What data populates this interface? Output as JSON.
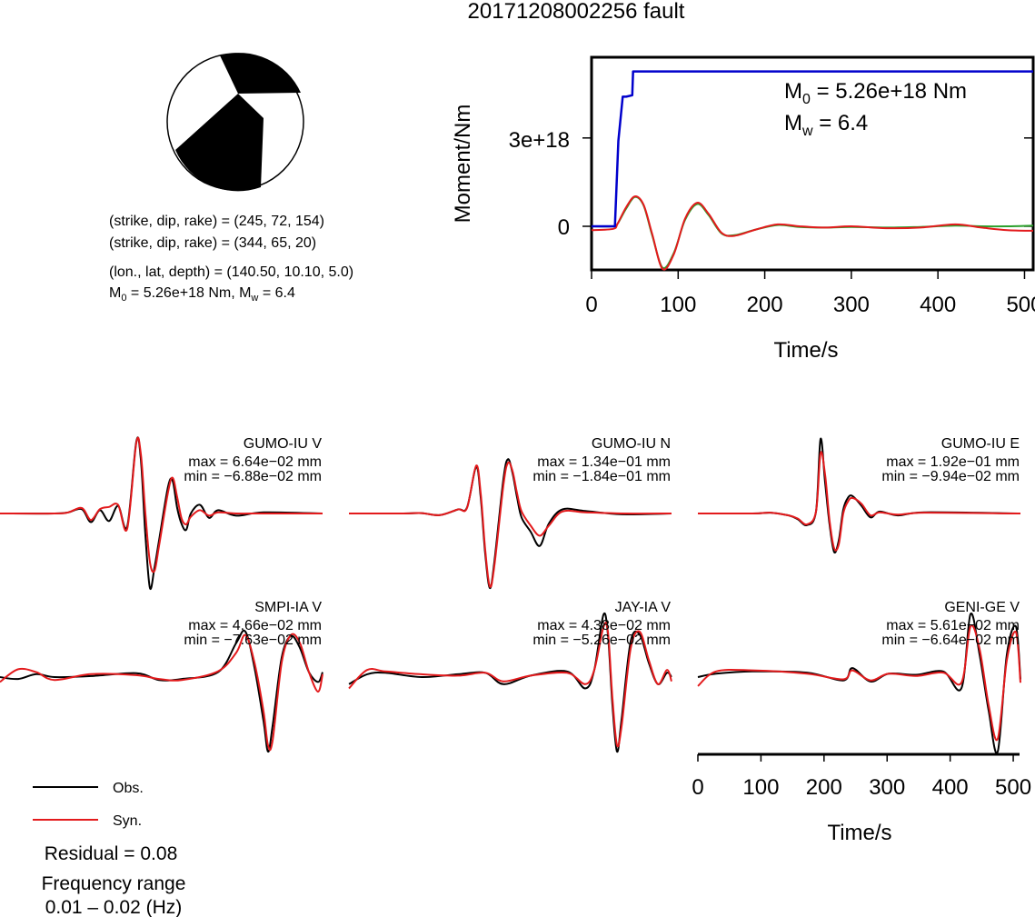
{
  "title": "20171208002256 fault",
  "mechanism": {
    "plane1": "(strike, dip, rake) = (245, 72, 154)",
    "plane2": "(strike, dip, rake) = (344, 65, 20)",
    "location": "(lon., lat, depth) = (140.50, 10.10, 5.0)",
    "moment_label": "M",
    "moment_sub": "0",
    "moment_rest": " = 5.26e+18 Nm, M",
    "mw_sub": "w",
    "mw_rest": " = 6.4"
  },
  "legend": {
    "obs": "Obs.",
    "syn": "Syn.",
    "obs_color": "#000000",
    "syn_color": "#e31a1c"
  },
  "residual": "Residual = 0.08",
  "freq_title": "Frequency range",
  "freq_range": "0.01 – 0.02 (Hz)",
  "chart_data": [
    {
      "type": "line",
      "name": "moment-rate",
      "xlabel": "Time/s",
      "ylabel": "Moment/Nm",
      "xlim": [
        0,
        510
      ],
      "xticks": [
        "0",
        "100",
        "200",
        "300",
        "400",
        "500"
      ],
      "yticks": [
        "0",
        "3e+18"
      ],
      "annotation": {
        "m0_main": "M",
        "m0_sub": "0",
        "m0_rest": " = 5.26e+18 Nm",
        "mw_main": "M",
        "mw_sub": "w",
        "mw_rest": " = 6.4"
      },
      "cumulative": {
        "color": "#0000cc",
        "x": [
          0,
          27,
          31,
          36,
          40,
          47,
          48,
          510
        ],
        "y": [
          0,
          0,
          2.9e+18,
          4.4e+18,
          4.4e+18,
          4.45e+18,
          5.26e+18,
          5.26e+18
        ]
      },
      "series_colors": [
        "#e31a1c",
        "#2ca02c"
      ],
      "wave_x": [
        0,
        25,
        30,
        40,
        50,
        60,
        70,
        82,
        95,
        108,
        122,
        135,
        150,
        165,
        190,
        215,
        240,
        270,
        300,
        340,
        380,
        420,
        450,
        480,
        510
      ],
      "wave_y_red": [
        -0.3,
        -0.2,
        0.2,
        1.5,
        2.35,
        1.7,
        -0.6,
        -3.35,
        -2.2,
        0.6,
        1.85,
        1.0,
        -0.5,
        -0.75,
        -0.25,
        0.15,
        0.0,
        -0.1,
        0.0,
        -0.15,
        -0.1,
        0.15,
        -0.1,
        -0.3,
        -0.35
      ],
      "wave_y_green": [
        0.0,
        0.0,
        0.2,
        1.4,
        2.3,
        1.65,
        -0.7,
        -3.25,
        -2.1,
        0.5,
        1.75,
        0.9,
        -0.55,
        -0.7,
        -0.25,
        0.1,
        -0.05,
        -0.1,
        -0.05,
        -0.1,
        -0.05,
        0.05,
        0.0,
        0.0,
        0.05
      ]
    },
    {
      "type": "line",
      "name": "waveforms",
      "xlabel": "Time/s",
      "xlim": [
        0,
        510
      ],
      "xticks": [
        "0",
        "100",
        "200",
        "300",
        "400",
        "500"
      ],
      "panels": [
        {
          "station": "GUMO-IU V",
          "max": "max = 6.64e−02 mm",
          "min": "min = −6.88e−02 mm",
          "obs_peak": 6.64,
          "obs_trough": -6.88,
          "x": [
            0,
            60,
            75,
            90,
            100,
            110,
            120,
            130,
            140,
            150,
            155,
            160,
            165,
            170,
            175,
            185,
            190,
            195,
            200,
            205,
            210,
            220,
            230,
            240,
            260,
            290,
            355
          ],
          "obs": [
            0,
            0,
            0.1,
            0.4,
            -0.8,
            0.3,
            -0.7,
            0.7,
            -1.2,
            6.64,
            5.0,
            -2.0,
            -6.88,
            -5.0,
            -2.5,
            2.5,
            3.0,
            0.5,
            -1.0,
            -1.5,
            0.0,
            0.8,
            -0.4,
            0.3,
            -0.2,
            0.1,
            0
          ],
          "syn": [
            0,
            0,
            0.1,
            0.5,
            -0.6,
            0.4,
            0.6,
            0.8,
            -1.4,
            6.5,
            5.5,
            0.0,
            -4.5,
            -5.3,
            -3.0,
            2.0,
            3.3,
            1.5,
            -0.5,
            -1.0,
            -0.3,
            0.3,
            -0.2,
            0.1,
            0,
            0,
            0
          ]
        },
        {
          "station": "GUMO-IU N",
          "max": "max = 1.34e−01 mm",
          "min": "min = −1.84e−01 mm",
          "obs_peak": 13.4,
          "obs_trough": -18.4,
          "x": [
            0,
            60,
            80,
            100,
            120,
            130,
            140,
            145,
            150,
            155,
            160,
            170,
            175,
            180,
            185,
            190,
            200,
            210,
            220,
            235,
            260,
            300,
            355
          ],
          "obs": [
            0,
            0,
            0.1,
            -0.4,
            1.0,
            1.5,
            11.5,
            4.0,
            -10.0,
            -18.4,
            -12.0,
            8.5,
            13.4,
            10.0,
            4.0,
            -1.0,
            -4.5,
            -8.0,
            -2.5,
            1.0,
            0.6,
            -0.2,
            0
          ],
          "syn": [
            0,
            0,
            0.1,
            -0.4,
            1.0,
            1.4,
            11.8,
            5.0,
            -9.0,
            -18.0,
            -13.0,
            7.0,
            12.5,
            10.5,
            5.0,
            0.5,
            -3.0,
            -5.5,
            -3.0,
            0.5,
            0.3,
            0,
            0
          ]
        },
        {
          "station": "GUMO-IU E",
          "max": "max = 1.92e−01 mm",
          "min": "min = −9.94e−02 mm",
          "obs_peak": 19.2,
          "obs_trough": -9.94,
          "x": [
            0,
            60,
            80,
            100,
            110,
            120,
            130,
            135,
            140,
            145,
            150,
            155,
            160,
            165,
            170,
            180,
            190,
            200,
            220,
            250,
            355
          ],
          "obs": [
            0,
            0,
            0.2,
            -0.5,
            -1.5,
            -3.0,
            0.5,
            19.2,
            8.0,
            -3.0,
            -9.94,
            -7.0,
            1.0,
            4.0,
            4.5,
            2.0,
            -1.0,
            0.5,
            -0.5,
            0.3,
            0
          ],
          "syn": [
            0,
            0,
            0.2,
            -0.5,
            -1.3,
            -2.8,
            0.5,
            15.5,
            10.0,
            -2.0,
            -9.0,
            -8.0,
            0.0,
            3.0,
            4.0,
            2.5,
            -0.5,
            0.3,
            -0.3,
            0.2,
            0
          ]
        },
        {
          "station": "SMPI-IA V",
          "max": "max = 4.66e−02 mm",
          "min": "min = −7.63e−02 mm",
          "obs_peak": 4.66,
          "obs_trough": -7.63,
          "x": [
            0,
            20,
            40,
            60,
            100,
            150,
            175,
            200,
            240,
            260,
            270,
            280,
            290,
            295,
            300,
            310,
            320,
            330,
            340,
            350,
            355
          ],
          "obs": [
            0,
            -0.2,
            0.3,
            0,
            0.1,
            0.4,
            -0.3,
            -0.2,
            0.5,
            3.5,
            4.66,
            1.0,
            -4.5,
            -7.63,
            -5.0,
            2.0,
            4.2,
            3.0,
            0.5,
            -0.5,
            0.5
          ],
          "syn": [
            -0.5,
            0.8,
            0.5,
            -0.3,
            0.3,
            0.2,
            -0.2,
            -0.3,
            0.6,
            2.5,
            4.3,
            1.5,
            -3.5,
            -7.0,
            -6.5,
            1.5,
            4.3,
            3.5,
            0.5,
            -1.5,
            0.3
          ]
        },
        {
          "station": "JAY-IA V",
          "max": "max = 4.38e−02 mm",
          "min": "min = −5.26e−02 mm",
          "obs_peak": 4.38,
          "obs_trough": -5.26,
          "x": [
            0,
            20,
            40,
            80,
            120,
            150,
            170,
            200,
            240,
            260,
            270,
            280,
            285,
            290,
            295,
            300,
            310,
            320,
            330,
            340,
            350,
            355
          ],
          "obs": [
            -0.5,
            0.2,
            0.3,
            0,
            0.2,
            0.3,
            -0.5,
            0.1,
            0.4,
            -0.8,
            0.5,
            4.38,
            3.0,
            -2.0,
            -5.26,
            -3.0,
            2.5,
            3.0,
            1.0,
            -0.5,
            0.3,
            0
          ],
          "syn": [
            -0.8,
            0.5,
            0.4,
            0.2,
            0.1,
            0.3,
            -0.3,
            0.1,
            0.3,
            -0.5,
            0.5,
            3.5,
            3.2,
            -1.5,
            -4.8,
            -3.5,
            2.0,
            3.2,
            1.2,
            -0.5,
            0.5,
            -0.3
          ]
        },
        {
          "station": "GENI-GE V",
          "max": "max = 5.61e−02 mm",
          "min": "min = −6.64e−02 mm",
          "obs_peak": 5.61,
          "obs_trough": -6.64,
          "x": [
            0,
            20,
            60,
            120,
            160,
            170,
            190,
            210,
            240,
            270,
            290,
            300,
            310,
            320,
            330,
            340,
            350,
            355
          ],
          "obs": [
            0,
            0.3,
            0.5,
            0.4,
            -0.3,
            0.8,
            -0.4,
            0.3,
            0.2,
            0.5,
            -1.0,
            5.61,
            2.0,
            -3.0,
            -6.64,
            2.0,
            4.5,
            -0.2
          ],
          "syn": [
            -0.8,
            0.5,
            0.6,
            0.3,
            -0.2,
            0.6,
            -0.3,
            0.3,
            0.1,
            0.4,
            -0.5,
            4.5,
            2.5,
            -2.5,
            -5.5,
            1.5,
            4.0,
            -0.5
          ]
        }
      ]
    }
  ]
}
